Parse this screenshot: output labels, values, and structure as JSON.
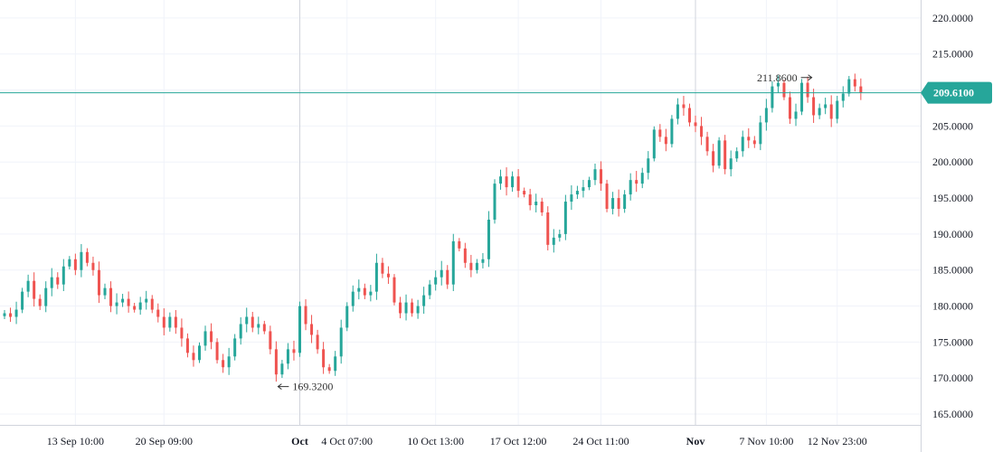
{
  "colors": {
    "up": "#26a69a",
    "down": "#ef5350",
    "grid": "#f0f3fa",
    "grid_strong": "#d1d4dc",
    "price_line": "#26a69a",
    "badge_bg": "#26a69a",
    "text": "#131722"
  },
  "chart_data": {
    "type": "candlestick",
    "ylim": [
      163.5,
      222.5
    ],
    "y_ticks": [
      "165.0000",
      "170.0000",
      "175.0000",
      "180.0000",
      "185.0000",
      "190.0000",
      "195.0000",
      "200.0000",
      "205.0000",
      "210.0000",
      "215.0000",
      "220.0000"
    ],
    "x_ticks": [
      {
        "label": "13 Sep 10:00",
        "index": 12,
        "bold": false
      },
      {
        "label": "20 Sep 09:00",
        "index": 27,
        "bold": false
      },
      {
        "label": "Oct",
        "index": 50,
        "bold": true
      },
      {
        "label": "4 Oct 07:00",
        "index": 58,
        "bold": false
      },
      {
        "label": "10 Oct 13:00",
        "index": 73,
        "bold": false
      },
      {
        "label": "17 Oct 12:00",
        "index": 87,
        "bold": false
      },
      {
        "label": "24 Oct 11:00",
        "index": 101,
        "bold": false
      },
      {
        "label": "Nov",
        "index": 117,
        "bold": true
      },
      {
        "label": "7 Nov 10:00",
        "index": 129,
        "bold": false
      },
      {
        "label": "12 Nov 23:00",
        "index": 141,
        "bold": false
      }
    ],
    "last_price": "209.6100",
    "last_price_value": 209.61,
    "annotation_low": {
      "label": "169.3200",
      "index": 46,
      "value": 169.32
    },
    "annotation_high": {
      "label": "211.8600",
      "index": 137,
      "value": 211.86
    },
    "closes": [
      179.0,
      178.5,
      179.5,
      182.0,
      183.5,
      181.0,
      180.0,
      182.5,
      184.0,
      183.0,
      185.5,
      186.5,
      185.0,
      187.5,
      186.0,
      185.0,
      181.5,
      182.5,
      180.0,
      180.5,
      181.0,
      180.0,
      179.5,
      180.5,
      181.0,
      179.5,
      178.5,
      177.0,
      178.5,
      177.0,
      175.5,
      173.5,
      172.5,
      174.5,
      176.5,
      175.0,
      172.5,
      171.5,
      173.0,
      175.5,
      177.5,
      178.5,
      177.0,
      177.5,
      176.5,
      174.0,
      170.5,
      172.0,
      174.0,
      173.5,
      180.0,
      177.5,
      176.0,
      174.0,
      171.5,
      171.0,
      173.0,
      177.0,
      180.0,
      182.0,
      182.5,
      181.5,
      182.0,
      186.0,
      184.5,
      184.0,
      180.5,
      179.0,
      180.5,
      179.0,
      180.0,
      181.5,
      183.0,
      184.0,
      185.0,
      183.0,
      189.0,
      188.0,
      186.0,
      185.0,
      186.0,
      186.5,
      192.0,
      197.0,
      198.0,
      196.5,
      198.0,
      196.0,
      195.5,
      194.0,
      194.5,
      193.0,
      188.5,
      189.5,
      190.0,
      194.5,
      195.5,
      196.0,
      196.5,
      197.5,
      199.0,
      197.0,
      193.5,
      195.0,
      193.5,
      195.5,
      197.5,
      197.0,
      198.5,
      200.5,
      204.5,
      203.5,
      202.5,
      206.0,
      208.0,
      207.5,
      205.5,
      205.0,
      203.5,
      201.5,
      199.5,
      203.0,
      199.0,
      200.5,
      201.5,
      203.5,
      203.0,
      202.5,
      205.5,
      207.5,
      210.5,
      211.0,
      209.0,
      206.0,
      207.0,
      211.0,
      209.0,
      206.5,
      207.5,
      208.0,
      206.0,
      208.5,
      209.5,
      211.5,
      210.5,
      209.6
    ]
  }
}
